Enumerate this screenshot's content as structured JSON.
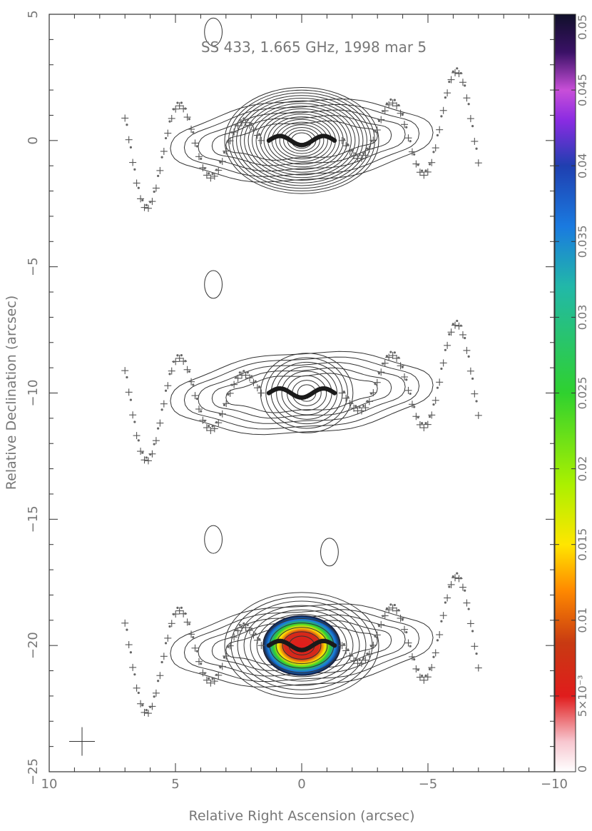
{
  "chart_data": {
    "type": "contour-map",
    "title": "SS 433, 1.665 GHz, 1998 mar 5",
    "xlabel": "Relative Right Ascension (arcsec)",
    "ylabel": "Relative Declination (arcsec)",
    "xlim": [
      10,
      -10
    ],
    "ylim": [
      -25,
      5
    ],
    "x_ticks": [
      10,
      5,
      0,
      -5,
      -10
    ],
    "y_ticks": [
      5,
      0,
      -5,
      -10,
      -15,
      -20,
      -25
    ],
    "x_tick_labels": [
      "10",
      "5",
      "0",
      "−5",
      "−10"
    ],
    "y_tick_labels": [
      "5",
      "0",
      "−5",
      "−10",
      "−15",
      "−20",
      "−25"
    ],
    "panels": [
      {
        "name": "upper",
        "dec_offset": 0,
        "ellipse_levels": 18,
        "shaded": false
      },
      {
        "name": "middle",
        "dec_offset": -10,
        "ellipse_levels": 8,
        "shaded": false
      },
      {
        "name": "lower",
        "dec_offset": -20,
        "ellipse_levels": 11,
        "shaded": true
      }
    ],
    "source_components": [
      {
        "name": "blob",
        "x": 3.5,
        "y": 4.3
      },
      {
        "name": "blob",
        "x": 3.5,
        "y": -5.7
      },
      {
        "name": "blob",
        "x": 3.5,
        "y": -15.8
      },
      {
        "name": "blob",
        "x": -1.1,
        "y": -16.3
      }
    ],
    "beam": {
      "x": 8.7,
      "y": -23.8
    },
    "colorbar": {
      "min": 0,
      "max": 0.05,
      "tick_values": [
        0,
        0.005,
        0.01,
        0.015,
        0.02,
        0.025,
        0.03,
        0.035,
        0.04,
        0.045,
        0.05
      ],
      "tick_labels": [
        "0",
        "5×10⁻³",
        "0.01",
        "0.015",
        "0.02",
        "0.025",
        "0.03",
        "0.035",
        "0.04",
        "0.045",
        "0.05"
      ],
      "colors": [
        "#ffffff",
        "#f7c6cf",
        "#e01c1c",
        "#c83a12",
        "#ff8a00",
        "#ffe600",
        "#aaf000",
        "#2fd12f",
        "#22b8a8",
        "#1a7ae0",
        "#1f3fb0",
        "#8a2be2",
        "#c84fd8",
        "#3a1166",
        "#10102a"
      ]
    }
  }
}
